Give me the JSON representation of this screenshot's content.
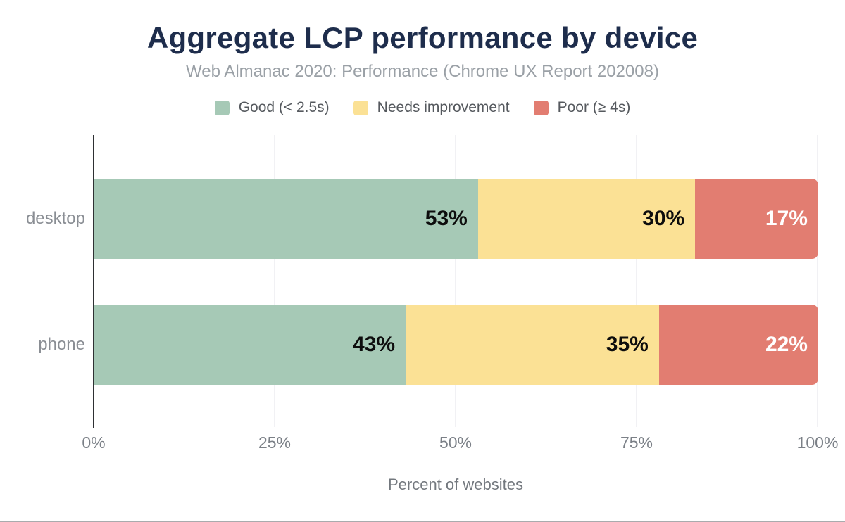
{
  "title": "Aggregate LCP performance by device",
  "subtitle": "Web Almanac 2020: Performance (Chrome UX Report 202008)",
  "palette": {
    "title_navy": "#1e2d4c",
    "good_green": "#a6c9b6",
    "needs_improvement_yellow": "#fbe195",
    "poor_red": "#e27d71"
  },
  "chart_data": {
    "type": "bar",
    "orientation": "horizontal",
    "stacked": true,
    "title": "Aggregate LCP performance by device",
    "subtitle": "Web Almanac 2020: Performance (Chrome UX Report 202008)",
    "categories": [
      "desktop",
      "phone"
    ],
    "series": [
      {
        "key": "good",
        "name": "Good (< 2.5s)",
        "color": "#a6c9b6",
        "value_text_color": "#0d0d0d",
        "values": [
          53,
          43
        ]
      },
      {
        "key": "needs-improvement",
        "name": "Needs improvement",
        "color": "#fbe195",
        "value_text_color": "#0d0d0d",
        "values": [
          30,
          35
        ]
      },
      {
        "key": "poor",
        "name": "Poor (≥ 4s)",
        "color": "#e27d71",
        "value_text_color": "#ffffff",
        "values": [
          17,
          22
        ]
      }
    ],
    "value_label_suffix": "%",
    "x_ticks": [
      {
        "value": 0,
        "label": "0%"
      },
      {
        "value": 25,
        "label": "25%"
      },
      {
        "value": 50,
        "label": "50%"
      },
      {
        "value": 75,
        "label": "75%"
      },
      {
        "value": 100,
        "label": "100%"
      }
    ],
    "xlim": [
      0,
      100
    ],
    "xlabel": "Percent of websites",
    "legend_position": "top",
    "grid": "vertical"
  }
}
